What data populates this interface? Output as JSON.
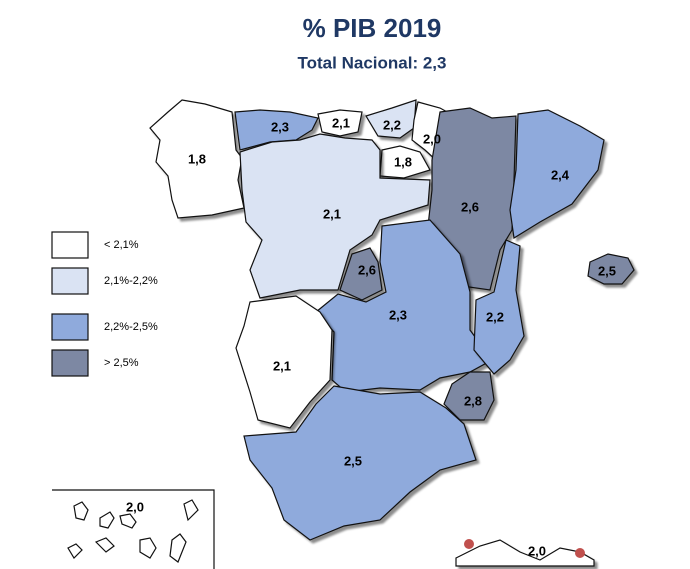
{
  "title": "% PIB 2019",
  "subtitle": "Total Nacional: 2,3",
  "legend": [
    {
      "label": "< 2,1%",
      "color": "#ffffff"
    },
    {
      "label": "2,1%-2,2%",
      "color": "#dae3f3"
    },
    {
      "label": "2,2%-2,5%",
      "color": "#8faadc"
    },
    {
      "label": "> 2,5%",
      "color": "#7d88a3"
    }
  ],
  "regions": [
    {
      "label": "1,8",
      "color": "#ffffff"
    },
    {
      "label": "2,3",
      "color": "#8faadc"
    },
    {
      "label": "2,1",
      "color": "#ffffff"
    },
    {
      "label": "2,2",
      "color": "#dae3f3"
    },
    {
      "label": "2,0",
      "color": "#ffffff"
    },
    {
      "label": "1,8",
      "color": "#ffffff"
    },
    {
      "label": "2,1",
      "color": "#dae3f3"
    },
    {
      "label": "2,6",
      "color": "#7d88a3"
    },
    {
      "label": "2,4",
      "color": "#8faadc"
    },
    {
      "label": "2,5",
      "color": "#7d88a3"
    },
    {
      "label": "2,6",
      "color": "#7d88a3"
    },
    {
      "label": "2,3",
      "color": "#8faadc"
    },
    {
      "label": "2,2",
      "color": "#8faadc"
    },
    {
      "label": "2,1",
      "color": "#ffffff"
    },
    {
      "label": "2,8",
      "color": "#7d88a3"
    },
    {
      "label": "2,5",
      "color": "#8faadc"
    },
    {
      "label": "2,0",
      "color": "#ffffff"
    },
    {
      "label": "2,0",
      "color": "#ffffff"
    }
  ]
}
